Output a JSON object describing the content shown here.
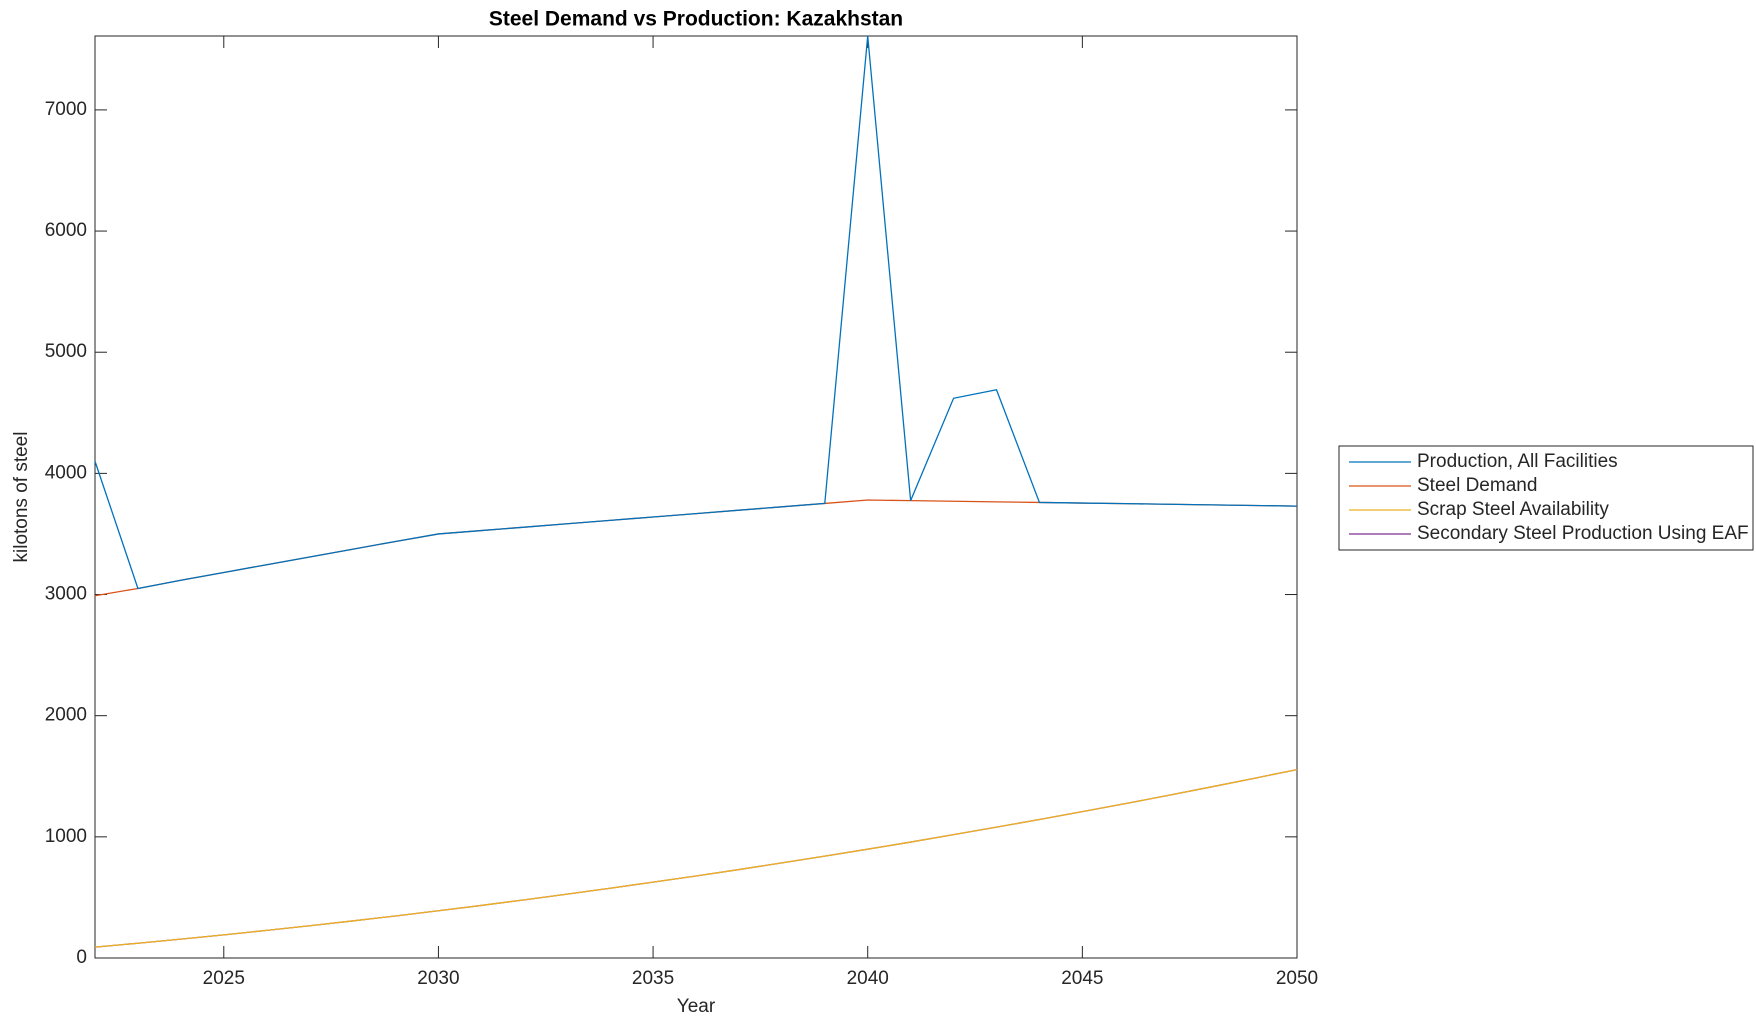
{
  "chart_data": {
    "type": "line",
    "title": "Steel Demand vs Production: Kazakhstan",
    "x_label": "Year",
    "y_label": "kilotons of steel",
    "x": [
      2022,
      2023,
      2024,
      2025,
      2026,
      2027,
      2028,
      2029,
      2030,
      2031,
      2032,
      2033,
      2034,
      2035,
      2036,
      2037,
      2038,
      2039,
      2040,
      2041,
      2042,
      2043,
      2044,
      2045,
      2046,
      2047,
      2048,
      2049,
      2050
    ],
    "series": [
      {
        "name": "Production, All Facilities",
        "color": "#0072BD",
        "values": [
          4100,
          3050,
          3118,
          3182,
          3246,
          3310,
          3374,
          3438,
          3500,
          3528,
          3556,
          3584,
          3612,
          3640,
          3668,
          3696,
          3724,
          3752,
          7610,
          3775,
          4620,
          4690,
          3760,
          3755,
          3750,
          3745,
          3740,
          3735,
          3730
        ]
      },
      {
        "name": "Steel Demand",
        "color": "#D95319",
        "values": [
          2990,
          3050,
          3118,
          3182,
          3246,
          3310,
          3374,
          3438,
          3500,
          3528,
          3556,
          3584,
          3612,
          3640,
          3668,
          3696,
          3724,
          3752,
          3780,
          3775,
          3770,
          3765,
          3760,
          3755,
          3750,
          3745,
          3740,
          3735,
          3730
        ]
      },
      {
        "name": "Scrap Steel Availability",
        "color": "#EDB120",
        "values": [
          90,
          122,
          156,
          191,
          228,
          266,
          306,
          347,
          390,
          434,
          480,
          527,
          576,
          626,
          677,
          730,
          785,
          841,
          898,
          957,
          1018,
          1080,
          1143,
          1208,
          1274,
          1342,
          1412,
          1483,
          1555
        ]
      },
      {
        "name": "Secondary Steel Production Using EAF",
        "color": "#7E2F8E",
        "values": [
          90,
          122,
          156,
          191,
          228,
          266,
          306,
          347,
          390,
          434,
          480,
          527,
          576,
          626,
          677,
          730,
          785,
          841,
          898,
          957,
          1018,
          1080,
          1143,
          1208,
          1274,
          1342,
          1412,
          1483,
          1555
        ]
      }
    ],
    "xlim": [
      2022,
      2050
    ],
    "xticks": [
      2025,
      2030,
      2035,
      2040,
      2045,
      2050
    ],
    "ylim": [
      0,
      7610
    ],
    "yticks": [
      0,
      1000,
      2000,
      3000,
      4000,
      5000,
      6000,
      7000
    ],
    "grid": false,
    "legend": "outside right"
  }
}
